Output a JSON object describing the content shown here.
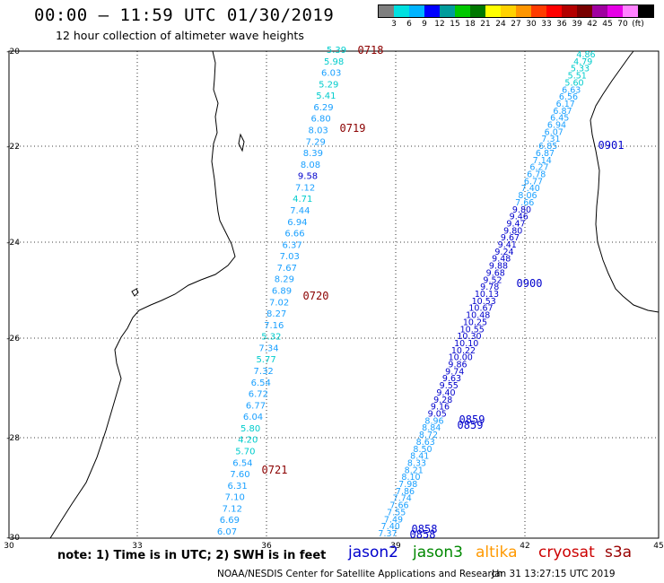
{
  "title": "00:00 – 11:59 UTC 01/30/2019",
  "subtitle": "12 hour collection of altimeter wave heights",
  "legend": {
    "colors": [
      "#7f7f7f",
      "#00e0e0",
      "#00b4ff",
      "#0000ff",
      "#009c9c",
      "#00c800",
      "#007800",
      "#ffff00",
      "#ffd200",
      "#ff9600",
      "#ff3c00",
      "#ff0000",
      "#b40000",
      "#780000",
      "#a000a0",
      "#e600e6",
      "#ff82ff",
      "#000000"
    ],
    "labels": [
      "3",
      "6",
      "9",
      "12",
      "15",
      "18",
      "21",
      "24",
      "27",
      "30",
      "33",
      "36",
      "39",
      "42",
      "45",
      "70",
      "(ft)"
    ]
  },
  "axes": {
    "y_ticks": [
      "-20",
      "-22",
      "-24",
      "-26",
      "-28",
      "-30"
    ],
    "x_ticks": [
      "30",
      "33",
      "36",
      "39",
      "42",
      "45"
    ]
  },
  "note": "note:  1) Time is in UTC;  2) SWH is in feet",
  "satellites": [
    {
      "name": "jason2",
      "color": "#0000cc"
    },
    {
      "name": "jason3",
      "color": "#008800"
    },
    {
      "name": "altika",
      "color": "#ff9900"
    },
    {
      "name": "cryosat",
      "color": "#cc0000"
    },
    {
      "name": "s3a",
      "color": "#990000"
    }
  ],
  "credit": "NOAA/NESDIS Center for Satellite Applications and Research",
  "timestamp": "Jan 31 13:27:15 UTC 2019",
  "times": [
    {
      "label": "0718",
      "color": "#8b0000"
    },
    {
      "label": "0719",
      "color": "#8b0000"
    },
    {
      "label": "0720",
      "color": "#8b0000"
    },
    {
      "label": "0721",
      "color": "#8b0000"
    },
    {
      "label": "0901",
      "color": "#0000cc"
    },
    {
      "label": "0900",
      "color": "#0000cc"
    },
    {
      "label": "0859",
      "color": "#0000cc"
    },
    {
      "label": "0859",
      "color": "#0000cc"
    },
    {
      "label": "0858",
      "color": "#0000cc"
    },
    {
      "label": "0858",
      "color": "#0000cc"
    }
  ],
  "track_west": {
    "values": [
      "5.39",
      "5.98",
      "6.03",
      "5.29",
      "5.41",
      "6.29",
      "6.80",
      "8.03",
      "7.29",
      "8.39",
      "8.08",
      "9.58",
      "7.12",
      "4.71",
      "7.44",
      "6.94",
      "6.66",
      "6.37",
      "7.03",
      "7.67",
      "8.29",
      "6.89",
      "7.02",
      "8.27",
      "7.16",
      "5.32",
      "7.34",
      "5.77",
      "7.32",
      "6.54",
      "6.72",
      "6.77",
      "6.04",
      "5.80",
      "4.20",
      "5.70",
      "6.54",
      "7.60",
      "6.31",
      "7.10",
      "7.12",
      "6.69",
      "6.07"
    ]
  },
  "track_east": {
    "values": [
      "4.86",
      "4.79",
      "5.33",
      "5.51",
      "5.60",
      "6.63",
      "6.56",
      "6.17",
      "6.87",
      "6.45",
      "6.94",
      "6.07",
      "7.31",
      "6.85",
      "6.87",
      "7.14",
      "6.27",
      "6.78",
      "6.77",
      "7.40",
      "8.06",
      "7.66",
      "9.80",
      "9.46",
      "9.47",
      "9.80",
      "9.67",
      "9.41",
      "9.24",
      "9.48",
      "9.88",
      "9.68",
      "9.52",
      "9.78",
      "10.13",
      "10.53",
      "10.67",
      "10.48",
      "10.25",
      "10.55",
      "10.30",
      "10.10",
      "10.22",
      "10.00",
      "9.86",
      "9.74",
      "9.63",
      "9.55",
      "9.40",
      "9.28",
      "9.16",
      "9.05",
      "8.96",
      "8.84",
      "8.72",
      "8.63",
      "8.50",
      "8.41",
      "8.33",
      "8.21",
      "8.10",
      "7.98",
      "7.86",
      "7.74",
      "7.66",
      "7.55",
      "7.49",
      "7.40",
      "7.37"
    ]
  }
}
